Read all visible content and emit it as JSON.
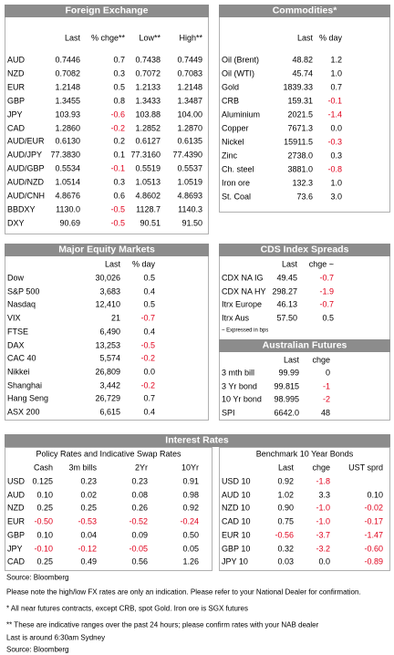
{
  "fx": {
    "title": "Foreign Exchange",
    "columns": [
      "Last",
      "% chge**",
      "Low**",
      "High**"
    ],
    "rows": [
      {
        "name": "AUD",
        "cells": [
          "0.7446",
          "0.7",
          "0.7438",
          "0.7449"
        ]
      },
      {
        "name": "NZD",
        "cells": [
          "0.7082",
          "0.3",
          "0.7072",
          "0.7083"
        ]
      },
      {
        "name": "EUR",
        "cells": [
          "1.2148",
          "0.5",
          "1.2133",
          "1.2148"
        ]
      },
      {
        "name": "GBP",
        "cells": [
          "1.3455",
          "0.8",
          "1.3433",
          "1.3487"
        ]
      },
      {
        "name": "JPY",
        "cells": [
          "103.93",
          "-0.6",
          "103.88",
          "104.00"
        ]
      },
      {
        "name": "CAD",
        "cells": [
          "1.2860",
          "-0.2",
          "1.2852",
          "1.2870"
        ]
      },
      {
        "name": "AUD/EUR",
        "cells": [
          "0.6130",
          "0.2",
          "0.6127",
          "0.6135"
        ]
      },
      {
        "name": "AUD/JPY",
        "cells": [
          "77.3830",
          "0.1",
          "77.3160",
          "77.4390"
        ]
      },
      {
        "name": "AUD/GBP",
        "cells": [
          "0.5534",
          "-0.1",
          "0.5519",
          "0.5537"
        ]
      },
      {
        "name": "AUD/NZD",
        "cells": [
          "1.0514",
          "0.3",
          "1.0513",
          "1.0519"
        ]
      },
      {
        "name": "AUD/CNH",
        "cells": [
          "4.8676",
          "0.6",
          "4.8602",
          "4.8693"
        ]
      },
      {
        "name": "BBDXY",
        "cells": [
          "1130.0",
          "-0.5",
          "1128.7",
          "1140.3"
        ]
      },
      {
        "name": "DXY",
        "cells": [
          "90.69",
          "-0.5",
          "90.51",
          "91.50"
        ]
      }
    ]
  },
  "commodities": {
    "title": "Commodities*",
    "columns": [
      "Last",
      "% day"
    ],
    "rows": [
      {
        "name": "Oil (Brent)",
        "cells": [
          "48.82",
          "1.2"
        ]
      },
      {
        "name": "Oil (WTI)",
        "cells": [
          "45.74",
          "1.0"
        ]
      },
      {
        "name": "Gold",
        "cells": [
          "1839.33",
          "0.7"
        ]
      },
      {
        "name": "CRB",
        "cells": [
          "159.31",
          "-0.1"
        ]
      },
      {
        "name": "Aluminium",
        "cells": [
          "2021.5",
          "-1.4"
        ]
      },
      {
        "name": "Copper",
        "cells": [
          "7671.3",
          "0.0"
        ]
      },
      {
        "name": "Nickel",
        "cells": [
          "15911.5",
          "-0.3"
        ]
      },
      {
        "name": "Zinc",
        "cells": [
          "2738.0",
          "0.3"
        ]
      },
      {
        "name": "Ch. steel",
        "cells": [
          "3881.0",
          "-0.8"
        ]
      },
      {
        "name": "Iron ore",
        "cells": [
          "132.3",
          "1.0"
        ]
      },
      {
        "name": "St. Coal",
        "cells": [
          "73.6",
          "3.0"
        ]
      }
    ]
  },
  "equities": {
    "title": "Major Equity Markets",
    "columns": [
      "Last",
      "% day"
    ],
    "rows": [
      {
        "name": "Dow",
        "cells": [
          "30,026",
          "0.5"
        ]
      },
      {
        "name": "S&P 500",
        "cells": [
          "3,683",
          "0.4"
        ]
      },
      {
        "name": "Nasdaq",
        "cells": [
          "12,410",
          "0.5"
        ]
      },
      {
        "name": "VIX",
        "cells": [
          "21",
          "-0.7"
        ]
      },
      {
        "name": "FTSE",
        "cells": [
          "6,490",
          "0.4"
        ]
      },
      {
        "name": "DAX",
        "cells": [
          "13,253",
          "-0.5"
        ]
      },
      {
        "name": "CAC 40",
        "cells": [
          "5,574",
          "-0.2"
        ]
      },
      {
        "name": "Nikkei",
        "cells": [
          "26,809",
          "0.0"
        ]
      },
      {
        "name": "Shanghai",
        "cells": [
          "3,442",
          "-0.2"
        ]
      },
      {
        "name": "Hang Seng",
        "cells": [
          "26,729",
          "0.7"
        ]
      },
      {
        "name": "ASX 200",
        "cells": [
          "6,615",
          "0.4"
        ]
      }
    ]
  },
  "cds": {
    "title": "CDS Index Spreads",
    "columns": [
      "Last",
      "chge ~"
    ],
    "rows": [
      {
        "name": "CDX NA IG",
        "cells": [
          "49.45",
          "-0.7"
        ]
      },
      {
        "name": "CDX NA HY",
        "cells": [
          "298.27",
          "-1.9"
        ]
      },
      {
        "name": "Itrx Europe",
        "cells": [
          "46.13",
          "-0.7"
        ]
      },
      {
        "name": "Itrx Aus",
        "cells": [
          "57.50",
          "0.5"
        ]
      }
    ],
    "note": "~ Expressed in bps"
  },
  "futures": {
    "title": "Australian Futures",
    "columns": [
      "Last",
      "chge"
    ],
    "rows": [
      {
        "name": "3 mth bill",
        "cells": [
          "99.99",
          "0"
        ]
      },
      {
        "name": "3 Yr bond",
        "cells": [
          "99.815",
          "-1"
        ]
      },
      {
        "name": "10 Yr bond",
        "cells": [
          "98.995",
          "-2"
        ]
      },
      {
        "name": "SPI",
        "cells": [
          "6642.0",
          "48"
        ]
      }
    ]
  },
  "interest_rates": {
    "title": "Interest Rates",
    "policy": {
      "title": "Policy Rates and Indicative Swap Rates",
      "columns": [
        "Cash",
        "3m bills",
        "2Yr",
        "10Yr"
      ],
      "rows": [
        {
          "name": "USD",
          "cells": [
            "0.125",
            "0.23",
            "0.23",
            "0.91"
          ]
        },
        {
          "name": "AUD",
          "cells": [
            "0.10",
            "0.02",
            "0.08",
            "0.98"
          ]
        },
        {
          "name": "NZD",
          "cells": [
            "0.25",
            "0.25",
            "0.26",
            "0.92"
          ]
        },
        {
          "name": "EUR",
          "cells": [
            "-0.50",
            "-0.53",
            "-0.52",
            "-0.24"
          ]
        },
        {
          "name": "GBP",
          "cells": [
            "0.10",
            "0.04",
            "0.09",
            "0.50"
          ]
        },
        {
          "name": "JPY",
          "cells": [
            "-0.10",
            "-0.12",
            "-0.05",
            "0.05"
          ]
        },
        {
          "name": "CAD",
          "cells": [
            "0.25",
            "0.49",
            "0.56",
            "1.26"
          ]
        }
      ]
    },
    "bonds": {
      "title": "Benchmark 10 Year Bonds",
      "columns": [
        "Last",
        "chge",
        "UST sprd"
      ],
      "rows": [
        {
          "name": "USD 10",
          "cells": [
            "0.92",
            "-1.8",
            null
          ]
        },
        {
          "name": "AUD 10",
          "cells": [
            "1.02",
            "3.3",
            "0.10"
          ]
        },
        {
          "name": "NZD 10",
          "cells": [
            "0.90",
            "-1.0",
            "-0.02"
          ]
        },
        {
          "name": "CAD 10",
          "cells": [
            "0.75",
            "-1.0",
            "-0.17"
          ]
        },
        {
          "name": "EUR 10",
          "cells": [
            "-0.56",
            "-3.7",
            "-1.47"
          ]
        },
        {
          "name": "GBP 10",
          "cells": [
            "0.32",
            "-3.2",
            "-0.60"
          ]
        },
        {
          "name": "JPY 10",
          "cells": [
            "0.03",
            "0.0",
            "-0.89"
          ]
        }
      ]
    }
  },
  "footer": [
    "Source: Bloomberg",
    "Please note the high/low FX rates are only an indication. Please refer to your National Dealer for confirmation.",
    "* All near futures contracts, except CRB, spot Gold.  Iron ore is SGX futures",
    "** These are indicative ranges over the past 24 hours; please confirm rates with your NAB dealer",
    "Last is around 6:30am Sydney",
    "Source: Bloomberg"
  ]
}
